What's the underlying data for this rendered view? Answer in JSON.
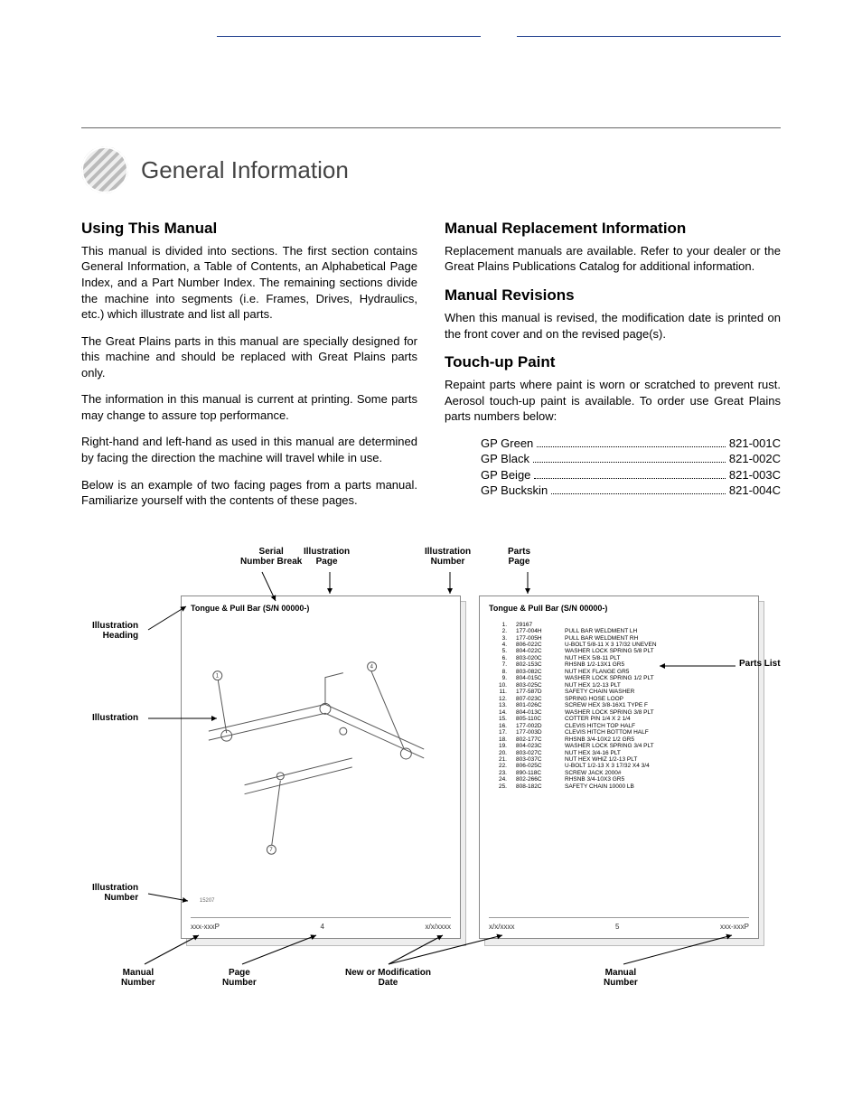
{
  "page_title": "General Information",
  "left_column": {
    "h": "Using This Manual",
    "p1": "This manual is divided into sections. The first section contains General Information, a Table of Contents, an Alphabetical Page Index, and a Part Number Index. The remaining sections divide the machine into segments (i.e. Frames, Drives, Hydraulics, etc.) which illustrate and list all parts.",
    "p2": "The Great Plains parts in this manual are specially designed for this machine and should be replaced with Great Plains parts only.",
    "p3": "The information in this manual is current at printing. Some parts may change to assure top performance.",
    "p4": "Right-hand and left-hand as used in this manual are determined by facing the direction the machine will travel while in use.",
    "p5": "Below is an example of two facing pages from a parts manual. Familiarize yourself with the contents of these pages."
  },
  "right_column": {
    "s1_h": "Manual Replacement Information",
    "s1_p": "Replacement manuals are available. Refer to your dealer or the Great Plains Publications Catalog for additional information.",
    "s2_h": "Manual Revisions",
    "s2_p": "When this manual is revised, the modification date is printed on the front cover and on the revised page(s).",
    "s3_h": "Touch-up Paint",
    "s3_p": "Repaint parts where paint is worn or scratched to prevent rust. Aerosol touch-up paint is available. To order use Great Plains parts numbers below:",
    "paints": [
      {
        "name": "GP Green",
        "num": "821-001C"
      },
      {
        "name": "GP Black",
        "num": "821-002C"
      },
      {
        "name": "GP Beige",
        "num": "821-003C"
      },
      {
        "name": "GP Buckskin",
        "num": "821-004C"
      }
    ]
  },
  "diagram": {
    "callouts": {
      "serial": "Serial\nNumber Break",
      "illus_page": "Illustration\nPage",
      "illus_num_top": "Illustration\nNumber",
      "parts_page": "Parts\nPage",
      "illus_head": "Illustration\nHeading",
      "illus": "Illustration",
      "illus_num_l": "Illustration\nNumber",
      "parts_list": "Parts List",
      "manual_num_l": "Manual\nNumber",
      "page_num": "Page\nNumber",
      "mod_date": "New or Modification\nDate",
      "manual_num_r": "Manual\nNumber"
    },
    "page_heading_left": "Tongue & Pull Bar (S/N 00000-)",
    "page_heading_right": "Tongue & Pull Bar (S/N 00000-)",
    "footer_left": {
      "a": "xxx-xxxP",
      "b": "4",
      "c": "x/x/xxxx"
    },
    "footer_right": {
      "a": "x/x/xxxx",
      "b": "5",
      "c": "xxx-xxxP"
    },
    "parts_list": [
      {
        "n": "1.",
        "pn": "29167",
        "desc": ""
      },
      {
        "n": "2.",
        "pn": "177-004H",
        "desc": "PULL BAR WELDMENT LH"
      },
      {
        "n": "3.",
        "pn": "177-005H",
        "desc": "PULL BAR WELDMENT RH"
      },
      {
        "n": "4.",
        "pn": "806-022C",
        "desc": "U-BOLT 5/8-11 X 3 17/32 UNEVEN"
      },
      {
        "n": "5.",
        "pn": "804-022C",
        "desc": "WASHER LOCK SPRING 5/8 PLT"
      },
      {
        "n": "6.",
        "pn": "803-020C",
        "desc": "NUT HEX 5/8-11 PLT"
      },
      {
        "n": "7.",
        "pn": "802-153C",
        "desc": "RHSNB 1/2-13X1 GR5"
      },
      {
        "n": "8.",
        "pn": "803-082C",
        "desc": "NUT HEX FLANGE GR5"
      },
      {
        "n": "9.",
        "pn": "804-015C",
        "desc": "WASHER LOCK SPRING 1/2 PLT"
      },
      {
        "n": "10.",
        "pn": "803-025C",
        "desc": "NUT HEX 1/2-13 PLT"
      },
      {
        "n": "11.",
        "pn": "177-587D",
        "desc": "SAFETY CHAIN WASHER"
      },
      {
        "n": "12.",
        "pn": "807-023C",
        "desc": "SPRING HOSE LOOP"
      },
      {
        "n": "13.",
        "pn": "801-026C",
        "desc": "SCREW HEX 3/8-16X1 TYPE F"
      },
      {
        "n": "14.",
        "pn": "804-013C",
        "desc": "WASHER LOCK SPRING 3/8 PLT"
      },
      {
        "n": "15.",
        "pn": "805-110C",
        "desc": "COTTER PIN 1/4 X 2 1/4"
      },
      {
        "n": "16.",
        "pn": "177-002D",
        "desc": "CLEVIS HITCH TOP HALF"
      },
      {
        "n": "17.",
        "pn": "177-003D",
        "desc": "CLEVIS HITCH BOTTOM HALF"
      },
      {
        "n": "18.",
        "pn": "802-177C",
        "desc": "RHSNB 3/4-10X2 1/2 GR5"
      },
      {
        "n": "19.",
        "pn": "804-023C",
        "desc": "WASHER LOCK SPRING 3/4 PLT"
      },
      {
        "n": "20.",
        "pn": "803-027C",
        "desc": "NUT HEX 3/4-16 PLT"
      },
      {
        "n": "21.",
        "pn": "803-037C",
        "desc": "NUT HEX WHIZ 1/2-13 PLT"
      },
      {
        "n": "22.",
        "pn": "806-025C",
        "desc": "U-BOLT 1/2-13 X 3 17/32 X4 3/4"
      },
      {
        "n": "23.",
        "pn": "890-118C",
        "desc": "SCREW JACK 2000#"
      },
      {
        "n": "24.",
        "pn": "802-266C",
        "desc": "RHSNB 3/4-10X3 GR5"
      },
      {
        "n": "25.",
        "pn": "808-182C",
        "desc": "SAFETY CHAIN 10000 LB"
      }
    ]
  }
}
